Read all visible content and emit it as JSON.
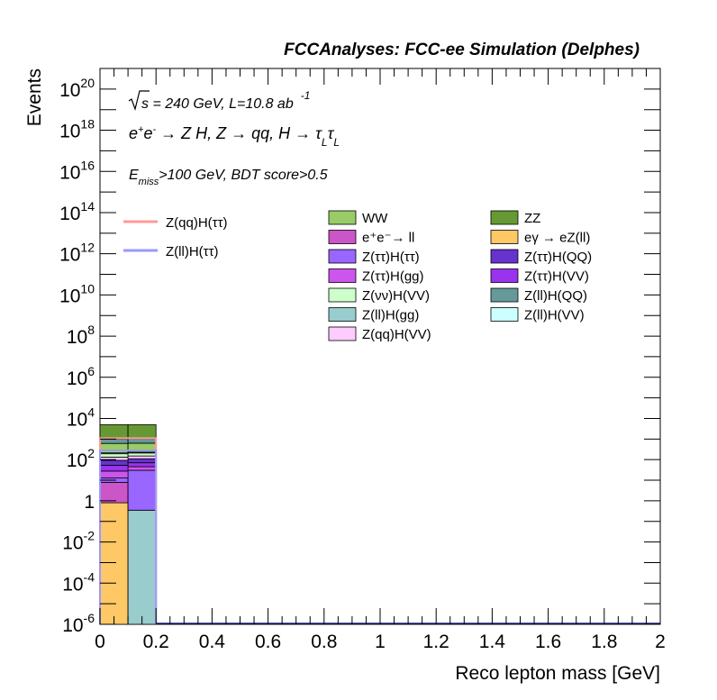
{
  "chart_data": {
    "type": "bar",
    "stacked": true,
    "title": "FCCAnalyses: FCC-ee Simulation (Delphes)",
    "xlabel": "Reco lepton mass [GeV]",
    "ylabel": "Events",
    "xlim": [
      0,
      2
    ],
    "ylim": [
      1e-06,
      1e+21
    ],
    "log_y": true,
    "x_ticks": [
      "0",
      "0.2",
      "0.4",
      "0.6",
      "0.8",
      "1",
      "1.2",
      "1.4",
      "1.6",
      "1.8",
      "2"
    ],
    "y_ticks": [
      {
        "base": "10",
        "exp": "20",
        "value": 1e+20
      },
      {
        "base": "10",
        "exp": "18",
        "value": 1e+18
      },
      {
        "base": "10",
        "exp": "16",
        "value": 1e+16
      },
      {
        "base": "10",
        "exp": "14",
        "value": 100000000000000.0
      },
      {
        "base": "10",
        "exp": "12",
        "value": 1000000000000.0
      },
      {
        "base": "10",
        "exp": "10",
        "value": 10000000000.0
      },
      {
        "base": "10",
        "exp": "8",
        "value": 100000000.0
      },
      {
        "base": "10",
        "exp": "6",
        "value": 1000000.0
      },
      {
        "base": "10",
        "exp": "4",
        "value": 10000.0
      },
      {
        "base": "10",
        "exp": "2",
        "value": 100.0
      },
      {
        "base": "1",
        "exp": "",
        "value": 1
      },
      {
        "base": "10",
        "exp": "-2",
        "value": 0.01
      },
      {
        "base": "10",
        "exp": "-4",
        "value": 0.0001
      },
      {
        "base": "10",
        "exp": "-6",
        "value": 1e-06
      }
    ],
    "annotations": {
      "energy": {
        "sqrt": "s",
        "rest": " = 240 GeV, L=10.8 ab",
        "sup": "-1"
      },
      "process": {
        "e": "e",
        "eplus": "+",
        "eminus": "-",
        "arrow1": " → Z H, Z  → qq, H  → ",
        "tau": "τ",
        "sub": "L"
      },
      "cut": {
        "E": "E",
        "sub": "miss",
        "rest": ">100 GeV, BDT score>0.5"
      }
    },
    "bin_edges": [
      0,
      0.1,
      0.2
    ],
    "stack": [
      {
        "name": "eγ → eZ(ll)",
        "color": "#fdc865",
        "values": [
          0.8,
          0
        ]
      },
      {
        "name": "Z(ll)H(gg)",
        "color": "#99cccc",
        "values": [
          0,
          0.35
        ]
      },
      {
        "name": "e⁺e⁻→ ll",
        "color": "#cc55c8",
        "values": [
          7,
          0
        ]
      },
      {
        "name": "Z(ττ)H(ττ)",
        "color": "#9966ff",
        "values": [
          5,
          30
        ]
      },
      {
        "name": "Z(ττ)H(gg)",
        "color": "#cc55ee",
        "values": [
          15,
          15
        ]
      },
      {
        "name": "Z(ττ)H(VV)",
        "color": "#9933ee",
        "values": [
          25,
          25
        ]
      },
      {
        "name": "Z(ττ)H(QQ)",
        "color": "#6633cc",
        "values": [
          40,
          40
        ]
      },
      {
        "name": "Z(qq)H(VV)",
        "color": "#ffccff",
        "values": [
          40,
          40
        ]
      },
      {
        "name": "Z(νν)H(VV)",
        "color": "#ccffcc",
        "values": [
          60,
          60
        ]
      },
      {
        "name": "Z(ll)H(VV)",
        "color": "#ccffff",
        "values": [
          20,
          20
        ]
      },
      {
        "name": "WW",
        "color": "#99cc66",
        "values": [
          400,
          400
        ]
      },
      {
        "name": "Z(ll)H(QQ)",
        "color": "#669999",
        "values": [
          400,
          400
        ]
      },
      {
        "name": "ZZ",
        "color": "#669933",
        "values": [
          4000,
          4000
        ]
      }
    ],
    "signals": [
      {
        "name": "Z(qq)H(ττ)",
        "color": "#ff9999",
        "values": [
          1100,
          1100
        ]
      },
      {
        "name": "Z(ll)H(ττ)",
        "color": "#9999ff",
        "values": [
          280,
          280
        ]
      }
    ],
    "legend_background": [
      {
        "name": "WW",
        "color": "#99cc66"
      },
      {
        "name": "ZZ",
        "color": "#669933"
      },
      {
        "name": "e⁺e⁻→ ll",
        "color": "#cc55c8"
      },
      {
        "name": "eγ → eZ(ll)",
        "color": "#fdc865"
      },
      {
        "name": "Z(ττ)H(ττ)",
        "color": "#9966ff"
      },
      {
        "name": "Z(ττ)H(QQ)",
        "color": "#6633cc"
      },
      {
        "name": "Z(ττ)H(gg)",
        "color": "#cc55ee"
      },
      {
        "name": "Z(ττ)H(VV)",
        "color": "#9933ee"
      },
      {
        "name": "Z(νν)H(VV)",
        "color": "#ccffcc"
      },
      {
        "name": "Z(ll)H(QQ)",
        "color": "#669999"
      },
      {
        "name": "Z(ll)H(gg)",
        "color": "#99cccc"
      },
      {
        "name": "Z(ll)H(VV)",
        "color": "#ccffff"
      },
      {
        "name": "Z(qq)H(VV)",
        "color": "#ffccff"
      }
    ],
    "legend_signal": [
      {
        "name": "Z(qq)H(ττ)",
        "color": "#ff9999"
      },
      {
        "name": "Z(ll)H(ττ)",
        "color": "#9999ff"
      }
    ],
    "grid": false,
    "legend_placement": "top"
  }
}
